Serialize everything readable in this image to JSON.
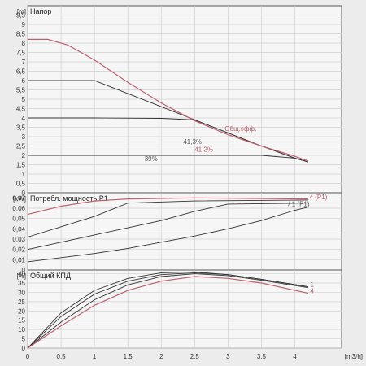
{
  "chart_data": [
    {
      "type": "line",
      "title": "Напор",
      "unit": "[m]",
      "xlabel": "[m3/h]",
      "xlim": [
        0,
        4.7
      ],
      "ylim": [
        0,
        10
      ],
      "grid": true,
      "x_ticks": [
        "0",
        "0,5",
        "1",
        "1,5",
        "2",
        "2,5",
        "3",
        "3,5",
        "4"
      ],
      "y_ticks": [
        "0",
        "0,5",
        "1",
        "1,5",
        "2",
        "2,5",
        "3",
        "3,5",
        "4",
        "4,5",
        "5",
        "5,5",
        "6",
        "6,5",
        "7",
        "7,5",
        "8",
        "8,5",
        "9",
        "9,5"
      ],
      "series": [
        {
          "color": "#333333",
          "points": [
            [
              0,
              4.0
            ],
            [
              1,
              4.0
            ],
            [
              2,
              3.98
            ],
            [
              2.5,
              3.9
            ],
            [
              3,
              3.2
            ],
            [
              3.5,
              2.5
            ],
            [
              4.0,
              1.85
            ],
            [
              4.2,
              1.65
            ]
          ]
        },
        {
          "color": "#333333",
          "points": [
            [
              0,
              6.0
            ],
            [
              1,
              6.0
            ],
            [
              1.5,
              5.3
            ],
            [
              2,
              4.6
            ],
            [
              2.5,
              3.9
            ],
            [
              3,
              3.2
            ],
            [
              3.5,
              2.5
            ],
            [
              4.0,
              1.85
            ],
            [
              4.2,
              1.65
            ]
          ]
        },
        {
          "color": "#333333",
          "points": [
            [
              0,
              2.0
            ],
            [
              1,
              2.0
            ],
            [
              2,
              2.0
            ],
            [
              3,
              2.0
            ],
            [
              3.5,
              2.0
            ],
            [
              4.0,
              1.85
            ],
            [
              4.2,
              1.65
            ]
          ]
        },
        {
          "color": "#c06070",
          "points": [
            [
              0,
              8.2
            ],
            [
              0.3,
              8.2
            ],
            [
              0.6,
              7.9
            ],
            [
              1.0,
              7.1
            ],
            [
              1.5,
              5.9
            ],
            [
              2.0,
              4.8
            ],
            [
              2.5,
              3.85
            ],
            [
              3.0,
              3.1
            ],
            [
              3.5,
              2.5
            ],
            [
              4.0,
              1.95
            ],
            [
              4.2,
              1.7
            ]
          ]
        }
      ],
      "annotations": [
        {
          "text": "Общ.эфф.",
          "x": 2.95,
          "y": 3.3,
          "color": "#c06070"
        },
        {
          "text": "41,3%",
          "x": 2.33,
          "y": 2.6,
          "color": "#555555"
        },
        {
          "text": "39%",
          "x": 1.75,
          "y": 1.7,
          "color": "#555555"
        },
        {
          "text": "41,2%",
          "x": 2.5,
          "y": 2.2,
          "color": "#c06070"
        }
      ]
    },
    {
      "type": "line",
      "title": "Потребл. мощность P1",
      "unit": "[kW]",
      "xlim": [
        0,
        4.7
      ],
      "ylim": [
        0,
        0.075
      ],
      "grid": true,
      "y_ticks": [
        "0",
        "0,01",
        "0,02",
        "0,03",
        "0,04",
        "0,05",
        "0,06",
        "0,07"
      ],
      "series": [
        {
          "color": "#333333",
          "points": [
            [
              0,
              0.032
            ],
            [
              0.5,
              0.042
            ],
            [
              1,
              0.052
            ],
            [
              1.5,
              0.065
            ],
            [
              2.5,
              0.067
            ],
            [
              4.2,
              0.068
            ]
          ]
        },
        {
          "color": "#333333",
          "points": [
            [
              0,
              0.02
            ],
            [
              0.5,
              0.027
            ],
            [
              1,
              0.034
            ],
            [
              1.5,
              0.041
            ],
            [
              2,
              0.048
            ],
            [
              2.5,
              0.057
            ],
            [
              3,
              0.064
            ],
            [
              4.2,
              0.065
            ]
          ]
        },
        {
          "color": "#333333",
          "points": [
            [
              0,
              0.008
            ],
            [
              0.5,
              0.012
            ],
            [
              1,
              0.016
            ],
            [
              1.5,
              0.021
            ],
            [
              2,
              0.027
            ],
            [
              2.5,
              0.033
            ],
            [
              3,
              0.04
            ],
            [
              3.5,
              0.048
            ],
            [
              4,
              0.058
            ],
            [
              4.2,
              0.061
            ]
          ]
        },
        {
          "color": "#c06070",
          "points": [
            [
              0,
              0.054
            ],
            [
              0.5,
              0.062
            ],
            [
              1,
              0.067
            ],
            [
              1.5,
              0.069
            ],
            [
              2.5,
              0.07
            ],
            [
              4.2,
              0.069
            ]
          ]
        }
      ],
      "annotations": [
        {
          "text": "4 (P1)",
          "x": 4.22,
          "y": 0.0685,
          "color": "#c06070"
        },
        {
          "text": "/ 1 (P1)",
          "x": 3.9,
          "y": 0.062,
          "color": "#555555"
        }
      ]
    },
    {
      "type": "line",
      "title": "Общий КПД",
      "unit": "[%]",
      "xlim": [
        0,
        4.7
      ],
      "ylim": [
        0,
        42
      ],
      "grid": true,
      "y_ticks": [
        "0",
        "5",
        "10",
        "15",
        "20",
        "25",
        "30",
        "35",
        "40"
      ],
      "series": [
        {
          "color": "#333333",
          "points": [
            [
              0,
              0
            ],
            [
              0.5,
              19
            ],
            [
              1,
              31
            ],
            [
              1.5,
              37.5
            ],
            [
              2,
              40.5
            ],
            [
              2.5,
              41
            ],
            [
              3,
              39.5
            ],
            [
              3.5,
              37
            ],
            [
              4.2,
              33
            ]
          ]
        },
        {
          "color": "#333333",
          "points": [
            [
              0,
              0
            ],
            [
              0.5,
              17
            ],
            [
              1,
              29
            ],
            [
              1.5,
              36
            ],
            [
              2,
              39.5
            ],
            [
              2.5,
              40.5
            ],
            [
              3,
              39.5
            ],
            [
              3.5,
              37
            ],
            [
              4.2,
              33
            ]
          ]
        },
        {
          "color": "#333333",
          "points": [
            [
              0,
              0
            ],
            [
              0.5,
              14
            ],
            [
              1,
              26
            ],
            [
              1.5,
              34
            ],
            [
              2,
              38.5
            ],
            [
              2.5,
              40
            ],
            [
              3,
              39
            ],
            [
              3.5,
              36.5
            ],
            [
              4.2,
              32.5
            ]
          ]
        },
        {
          "color": "#c06070",
          "points": [
            [
              0,
              0
            ],
            [
              0.5,
              12
            ],
            [
              1,
              23
            ],
            [
              1.5,
              31
            ],
            [
              2,
              36
            ],
            [
              2.5,
              38.5
            ],
            [
              3,
              37.5
            ],
            [
              3.5,
              35
            ],
            [
              4.2,
              29.5
            ]
          ]
        }
      ],
      "annotations": [
        {
          "text": "1",
          "x": 4.23,
          "y": 33,
          "color": "#555555"
        },
        {
          "text": "4",
          "x": 4.23,
          "y": 29.5,
          "color": "#c06070"
        }
      ]
    }
  ]
}
